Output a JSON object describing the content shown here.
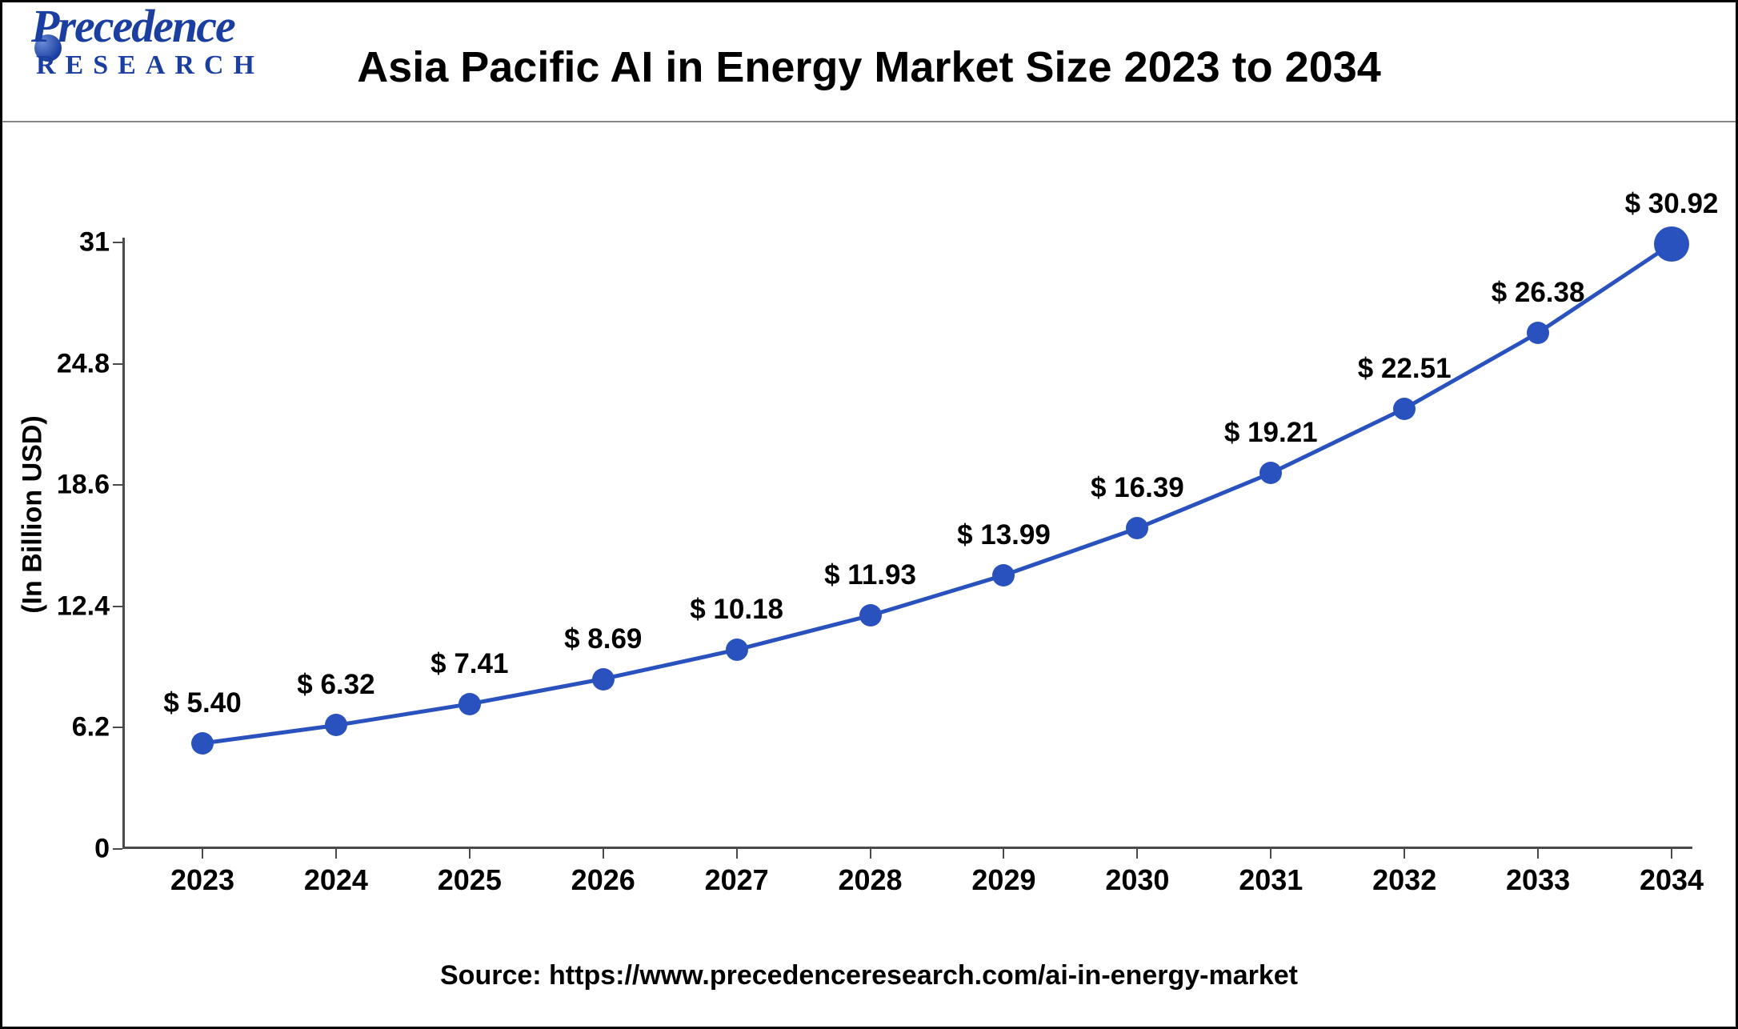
{
  "header": {
    "logo_main": "Precedence",
    "logo_sub": "RESEARCH",
    "title": "Asia Pacific AI in Energy Market Size 2023 to 2034",
    "title_fontsize": 54,
    "title_color": "#000000"
  },
  "chart": {
    "type": "line",
    "ylabel": "(In Billion USD)",
    "ylabel_fontsize": 34,
    "xtick_fontsize": 36,
    "ytick_fontsize": 34,
    "value_label_fontsize": 35,
    "ylim_min": 0,
    "ylim_max": 31,
    "yticks": [
      0,
      6.2,
      12.4,
      18.6,
      24.8,
      31
    ],
    "categories": [
      "2023",
      "2024",
      "2025",
      "2026",
      "2027",
      "2028",
      "2029",
      "2030",
      "2031",
      "2032",
      "2033",
      "2034"
    ],
    "values": [
      5.4,
      6.32,
      7.41,
      8.69,
      10.18,
      11.93,
      13.99,
      16.39,
      19.21,
      22.51,
      26.38,
      30.92
    ],
    "value_labels": [
      "$ 5.40",
      "$ 6.32",
      "$ 7.41",
      "$ 8.69",
      "$ 10.18",
      "$ 11.93",
      "$ 13.99",
      "$ 16.39",
      "$ 19.21",
      "$ 22.51",
      "$ 26.38",
      "$ 30.92"
    ],
    "line_color": "#2a52be",
    "line_width": 5,
    "marker_color": "#2a52be",
    "marker_radius": 14,
    "last_marker_radius": 22,
    "axis_color": "#4a4a4a",
    "axis_width": 3,
    "background_color": "#ffffff",
    "value_label_y_offset": -30
  },
  "footer": {
    "source_label": "Source: https://www.precedenceresearch.com/ai-in-energy-market",
    "source_fontsize": 34
  }
}
